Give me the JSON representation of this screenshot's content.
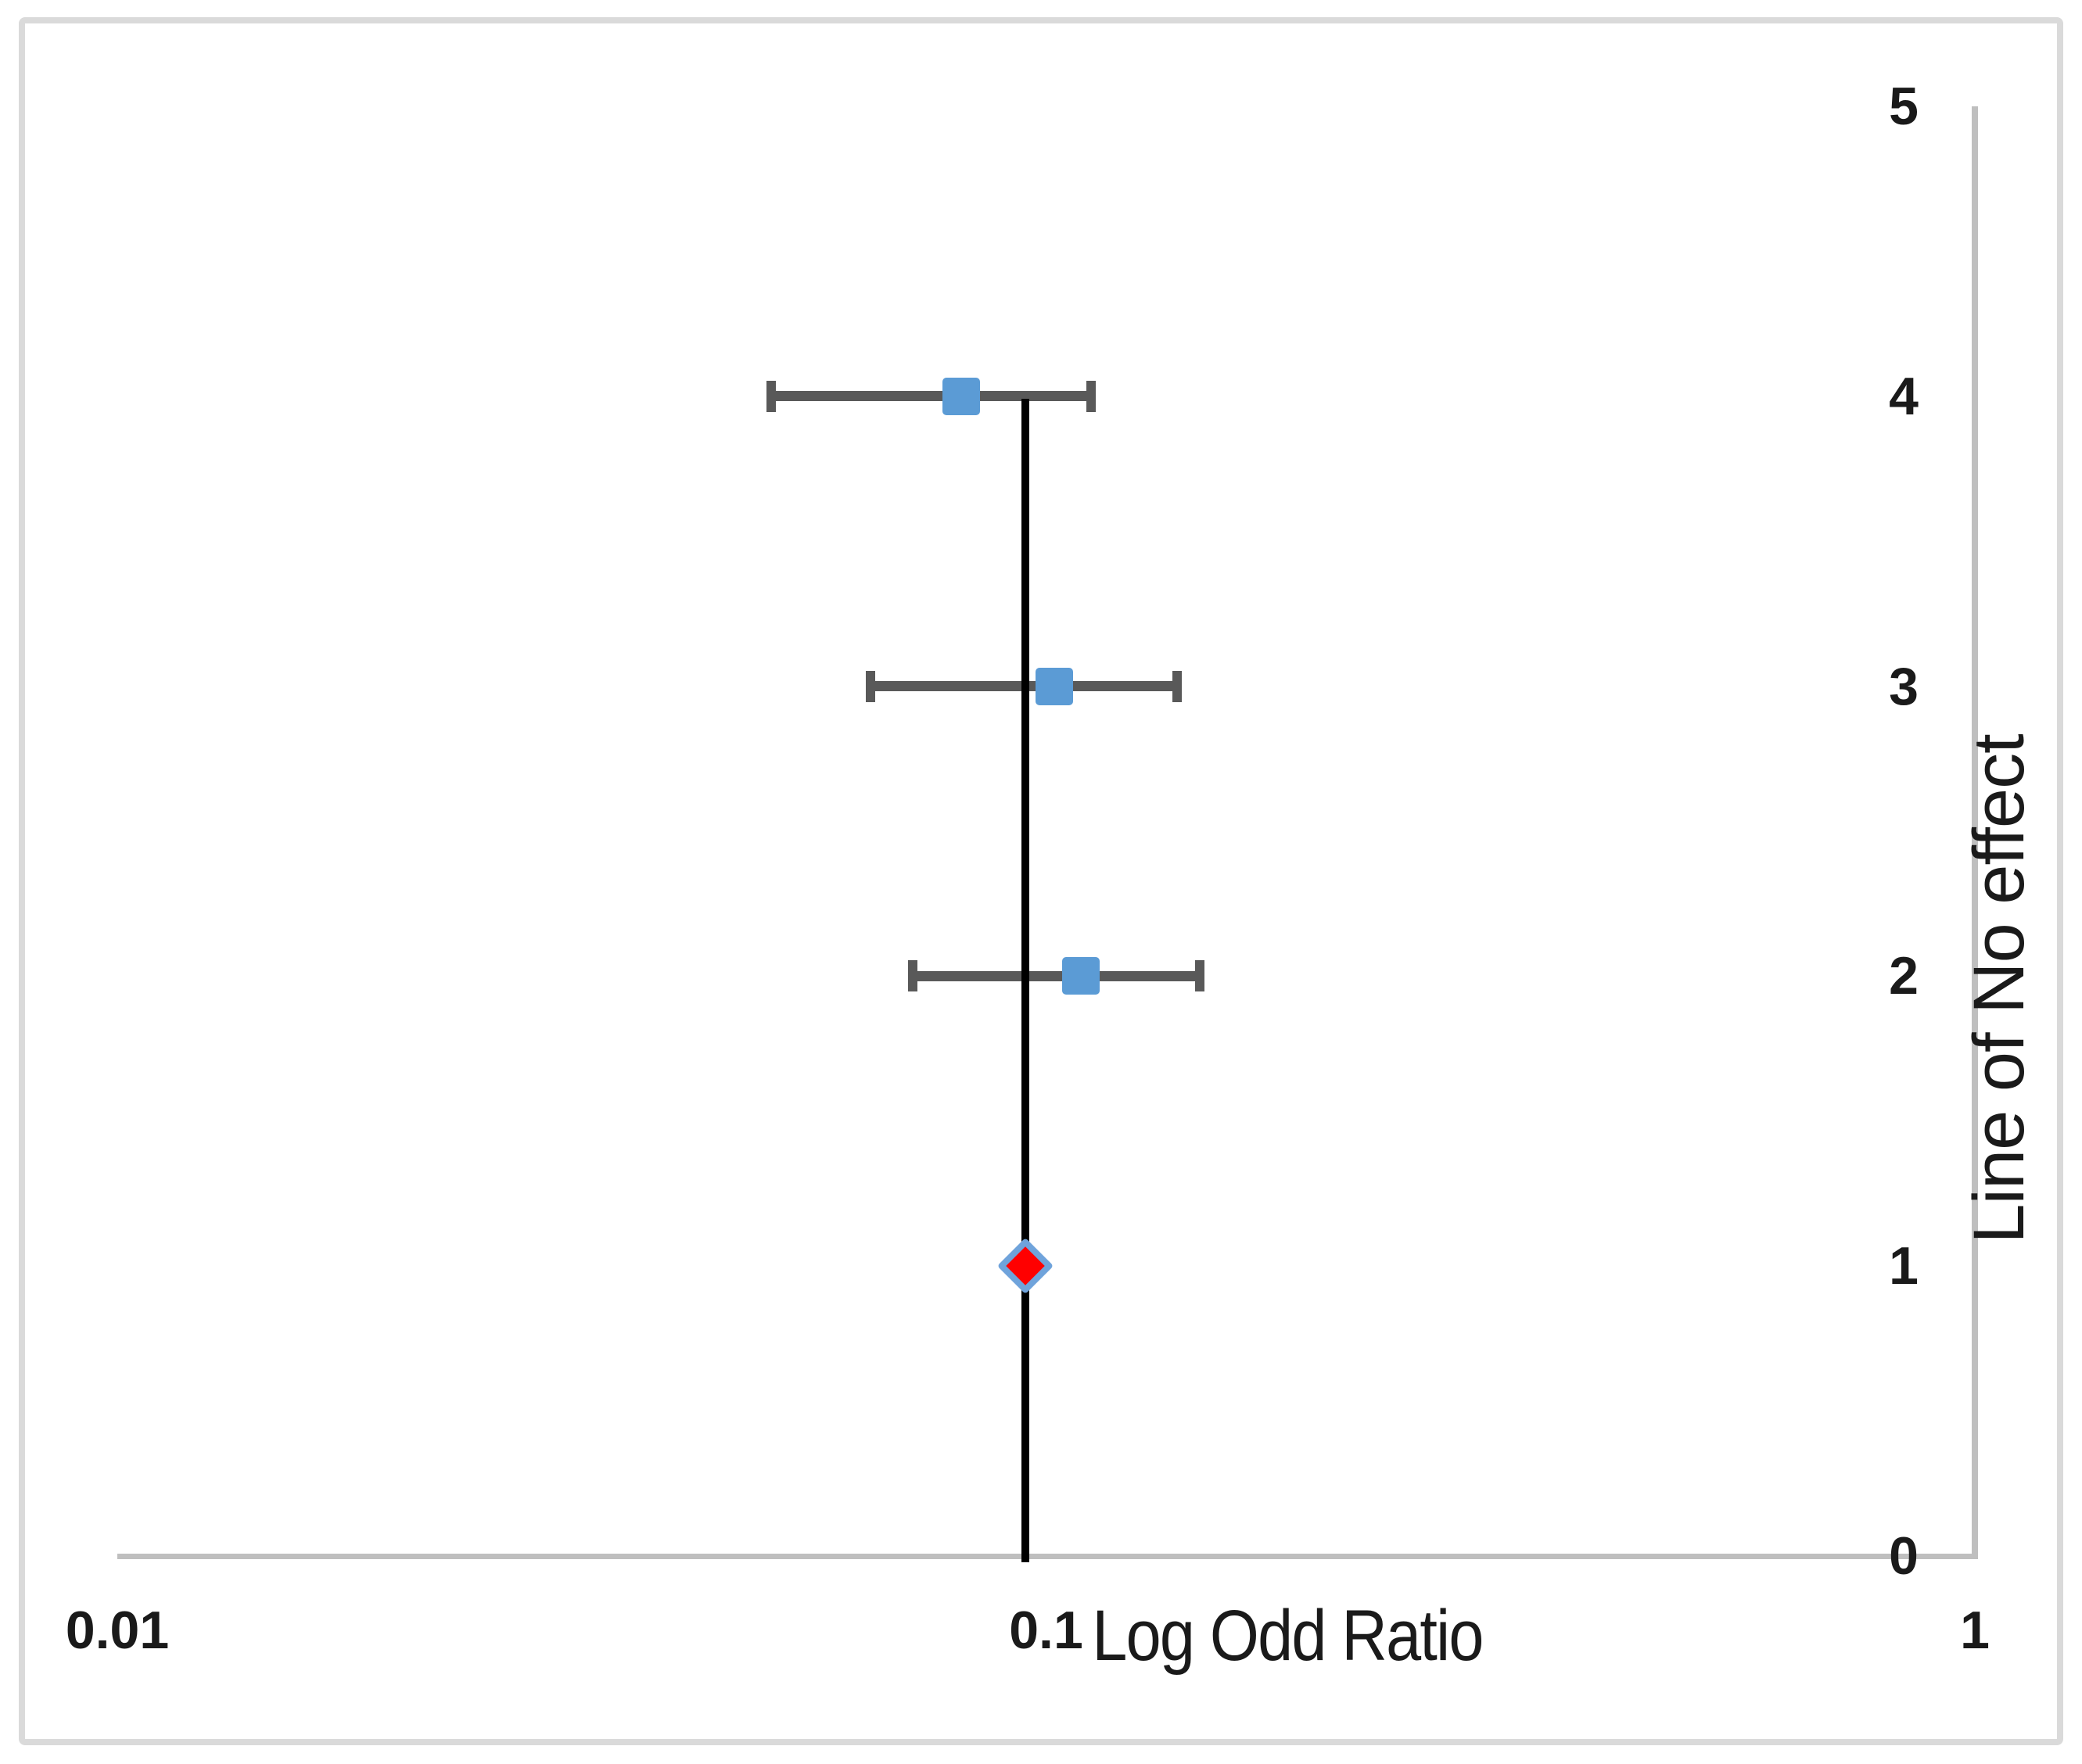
{
  "figure": {
    "background_color": "#ffffff",
    "frame_border_color": "#dadada"
  },
  "colors": {
    "study_marker_blue": "#5b9bd5",
    "summary_diamond_red": "#ff0000",
    "summary_diamond_border_blue": "#6fa3db",
    "whisker_gray": "#595959",
    "axis_line_gray": "#bfbfbf",
    "no_effect_line_black": "#000000",
    "label_text": "#1a1a1a"
  },
  "chart_data": {
    "type": "scatter",
    "subtype": "forest-plot",
    "title": "",
    "xlabel": "Log Odd Ratio",
    "right_axis_label": "Line of No effect",
    "x_scale": "log10",
    "xlim": [
      0.01,
      1
    ],
    "ylim": [
      0,
      5
    ],
    "grid": false,
    "legend": "none",
    "x_ticks": [
      {
        "value": 0.01,
        "label": "0.01"
      },
      {
        "value": 0.1,
        "label": "0.1"
      },
      {
        "value": 1,
        "label": "1"
      }
    ],
    "y_ticks": [
      {
        "value": 5,
        "label": "5"
      },
      {
        "value": 4,
        "label": "4"
      },
      {
        "value": 3,
        "label": "3"
      },
      {
        "value": 2,
        "label": "2"
      },
      {
        "value": 1,
        "label": "1"
      },
      {
        "value": 0,
        "label": "0"
      }
    ],
    "no_effect_line_x": 0.095,
    "studies": [
      {
        "y": 4,
        "or": 0.081,
        "ci_low": 0.05,
        "ci_high": 0.113,
        "marker": "square"
      },
      {
        "y": 3,
        "or": 0.102,
        "ci_low": 0.064,
        "ci_high": 0.14,
        "marker": "square"
      },
      {
        "y": 2,
        "or": 0.109,
        "ci_low": 0.071,
        "ci_high": 0.148,
        "marker": "square"
      }
    ],
    "summary": {
      "y": 1,
      "or": 0.095,
      "marker": "diamond"
    }
  }
}
